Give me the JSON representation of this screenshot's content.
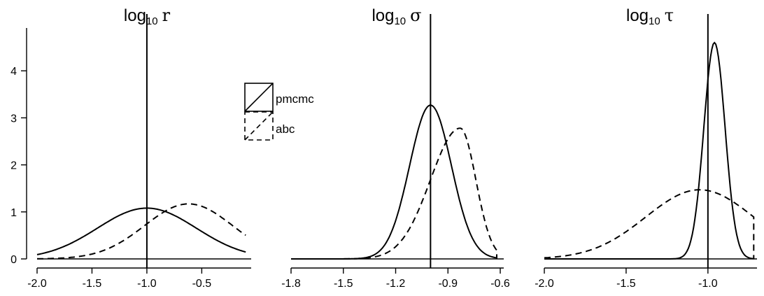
{
  "chart_data": [
    {
      "type": "line",
      "title": {
        "base": "log",
        "sub": "10",
        "symbol": "r"
      },
      "xlabel": "",
      "ylabel": "",
      "xlim": [
        -2.05,
        -0.05
      ],
      "ylim": [
        0,
        4.8
      ],
      "x_ticks": [
        -2.0,
        -1.5,
        -1.0,
        -0.5
      ],
      "x_tick_labels": [
        "-2.0",
        "-1.5",
        "-1.0",
        "-0.5"
      ],
      "y_ticks": [
        0,
        1,
        2,
        3,
        4
      ],
      "y_tick_labels": [
        "0",
        "1",
        "2",
        "3",
        "4"
      ],
      "reference_line": -1.0,
      "series": [
        {
          "name": "pmcmc",
          "line_style": "solid",
          "curve": {
            "kind": "gaussian",
            "peak_x": -1.0,
            "peak_y": 1.08,
            "sd": 0.45,
            "x_range": [
              -2.0,
              -0.1
            ]
          }
        },
        {
          "name": "abc",
          "line_style": "dashed",
          "curve": {
            "kind": "gaussian",
            "peak_x": -0.62,
            "peak_y": 1.17,
            "sd": 0.4,
            "x_range": [
              -2.0,
              -0.1
            ]
          }
        }
      ]
    },
    {
      "type": "line",
      "title": {
        "base": "log",
        "sub": "10",
        "symbol": "σ"
      },
      "xlabel": "",
      "ylabel": "",
      "xlim": [
        -1.85,
        -0.58
      ],
      "ylim": [
        0,
        4.8
      ],
      "x_ticks": [
        -1.8,
        -1.5,
        -1.2,
        -0.9,
        -0.6
      ],
      "x_tick_labels": [
        "-1.8",
        "-1.5",
        "-1.2",
        "-0.9",
        "-0.6"
      ],
      "y_ticks": [],
      "y_tick_labels": [],
      "reference_line": -1.0,
      "series": [
        {
          "name": "pmcmc",
          "line_style": "solid",
          "curve": {
            "kind": "gaussian",
            "peak_x": -1.0,
            "peak_y": 3.27,
            "sd": 0.12,
            "x_range": [
              -1.8,
              -0.62
            ]
          }
        },
        {
          "name": "abc",
          "line_style": "dashed",
          "curve": {
            "kind": "skew-left",
            "peak_x": -0.83,
            "peak_y": 2.78,
            "sd_left": 0.17,
            "sd_right": 0.09,
            "x_range": [
              -1.8,
              -0.62
            ],
            "end_drop": true
          }
        }
      ]
    },
    {
      "type": "line",
      "title": {
        "base": "log",
        "sub": "10",
        "symbol": "τ"
      },
      "xlabel": "",
      "ylabel": "",
      "xlim": [
        -2.0,
        -0.7
      ],
      "ylim": [
        0,
        4.8
      ],
      "x_ticks": [
        -2.0,
        -1.5,
        -1.0
      ],
      "x_tick_labels": [
        "-2.0",
        "-1.5",
        "-1.0"
      ],
      "y_ticks": [],
      "y_tick_labels": [],
      "reference_line": -1.0,
      "series": [
        {
          "name": "pmcmc",
          "line_style": "solid",
          "curve": {
            "kind": "gaussian",
            "peak_x": -0.96,
            "peak_y": 4.6,
            "sd": 0.065,
            "x_range": [
              -2.0,
              -0.72
            ]
          }
        },
        {
          "name": "abc",
          "line_style": "dashed",
          "curve": {
            "kind": "gaussian",
            "peak_x": -1.05,
            "peak_y": 1.47,
            "sd": 0.33,
            "x_range": [
              -2.0,
              -0.72
            ],
            "end_drop": true
          }
        }
      ]
    }
  ],
  "legend": {
    "placement": "inside first panel, upper-right",
    "entries": [
      {
        "label": "pmcmc",
        "line_style": "solid"
      },
      {
        "label": "abc",
        "line_style": "dashed"
      }
    ]
  }
}
